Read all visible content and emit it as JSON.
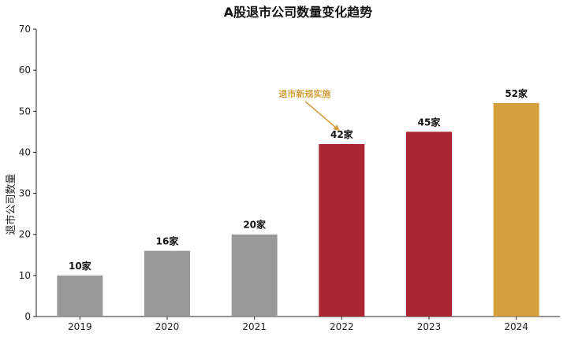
{
  "chart_data": {
    "type": "bar",
    "title": "A股退市公司数量变化趋势",
    "xlabel": "",
    "ylabel": "退市公司数量",
    "categories": [
      "2019",
      "2020",
      "2021",
      "2022",
      "2023",
      "2024"
    ],
    "values": [
      10,
      16,
      20,
      42,
      45,
      52
    ],
    "data_labels": [
      "10家",
      "16家",
      "20家",
      "42家",
      "45家",
      "52家"
    ],
    "bar_colors": [
      "#999999",
      "#999999",
      "#999999",
      "#ab2632",
      "#ab2632",
      "#d4a03e"
    ],
    "ylim": [
      0,
      70
    ],
    "yticks": [
      0,
      10,
      20,
      30,
      40,
      50,
      60,
      70
    ],
    "grid": false,
    "annotation": {
      "text": "退市新规实施",
      "target_category": "2022",
      "color": "#d4a03e"
    }
  }
}
